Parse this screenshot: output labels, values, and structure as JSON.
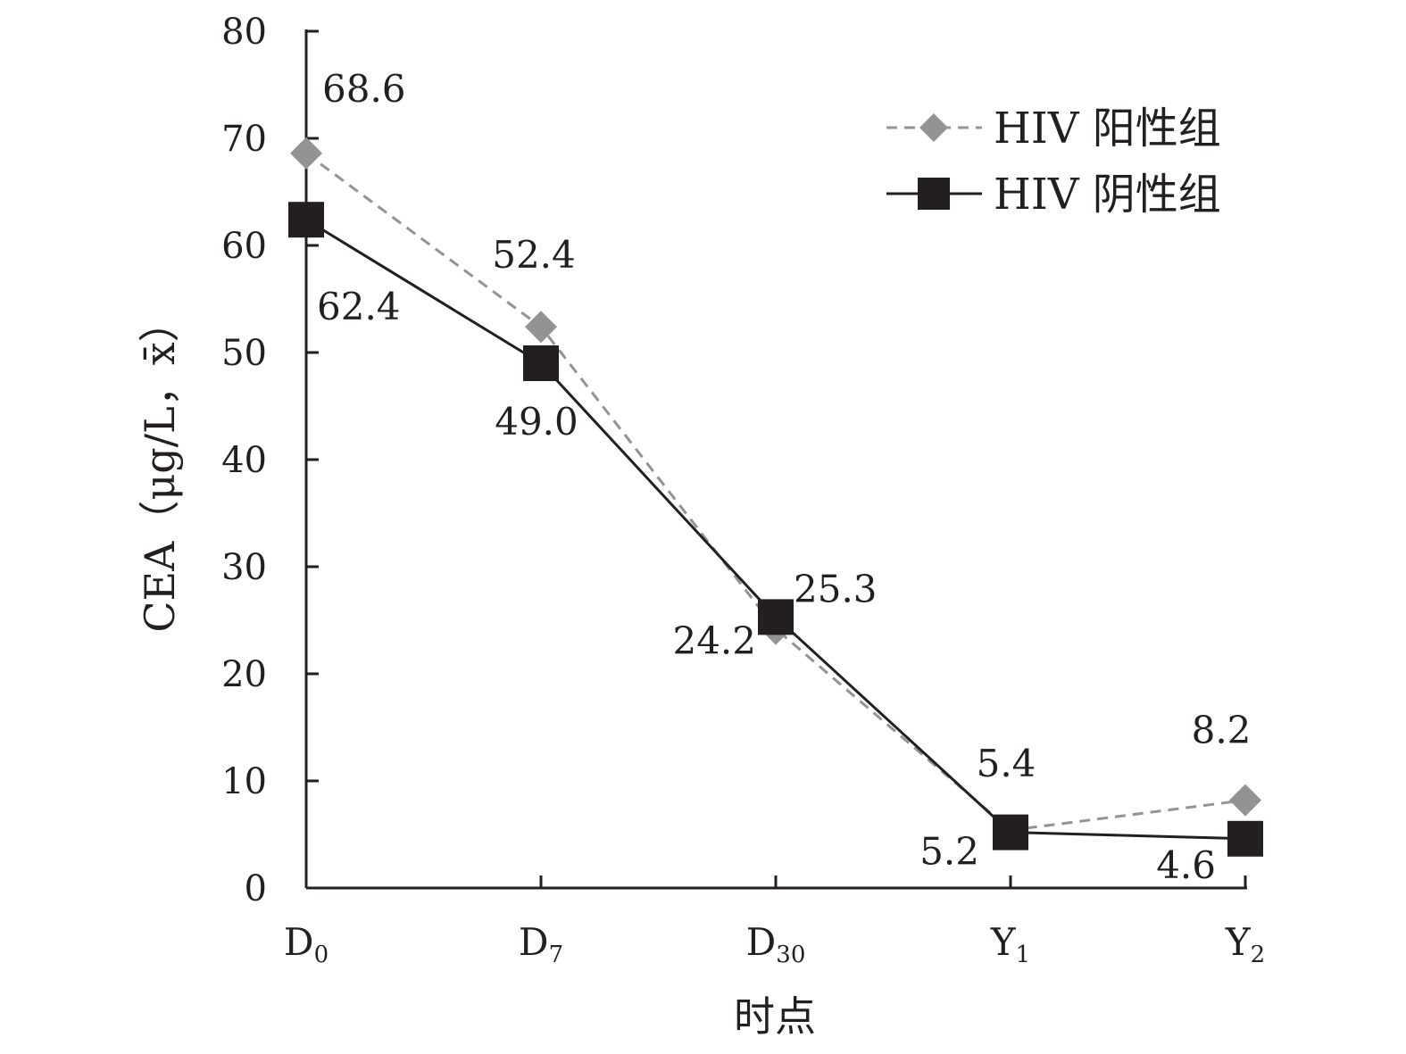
{
  "chart_data": {
    "type": "line",
    "categories": [
      "D0",
      "D7",
      "D30",
      "Y1",
      "Y2"
    ],
    "category_ticks": [
      {
        "main": "D",
        "sub": "0"
      },
      {
        "main": "D",
        "sub": "7"
      },
      {
        "main": "D",
        "sub": "30"
      },
      {
        "main": "Y",
        "sub": "1"
      },
      {
        "main": "Y",
        "sub": "2"
      }
    ],
    "series": [
      {
        "name": "HIV 阳性组",
        "values": [
          68.6,
          52.4,
          24.2,
          5.4,
          8.2
        ],
        "labels": [
          "68.6",
          "52.4",
          "24.2",
          "5.4",
          "8.2"
        ],
        "color": "#939393",
        "line_style": "dashed",
        "marker": "diamond"
      },
      {
        "name": "HIV 阴性组",
        "values": [
          62.4,
          49.0,
          25.3,
          5.2,
          4.6
        ],
        "labels": [
          "62.4",
          "49.0",
          "25.3",
          "5.2",
          "4.6"
        ],
        "color": "#231f20",
        "line_style": "solid",
        "marker": "square"
      }
    ],
    "xlabel": "时点",
    "ylabel": "CEA（μg/L，x̄）",
    "ylim": [
      0,
      80
    ],
    "yticks": [
      "0",
      "10",
      "20",
      "30",
      "40",
      "50",
      "60",
      "70",
      "80"
    ],
    "grid": false,
    "legend_position": "top-right"
  }
}
